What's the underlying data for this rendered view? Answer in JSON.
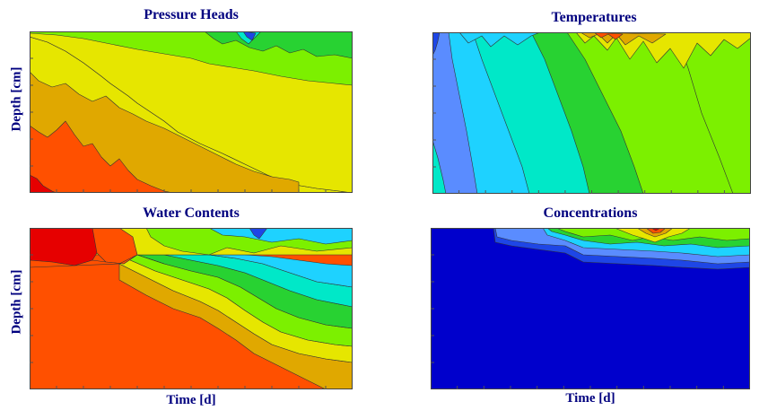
{
  "panels": [
    {
      "title": "Pressure Heads",
      "ylabel": "Depth [cm]",
      "xlabel": ""
    },
    {
      "title": "Temperatures",
      "ylabel": "",
      "xlabel": ""
    },
    {
      "title": "Water Contents",
      "ylabel": "Depth [cm]",
      "xlabel": "Time [d]"
    },
    {
      "title": "Concentrations",
      "ylabel": "",
      "xlabel": "Time [d]"
    }
  ],
  "colors": {
    "title_text": "#00007f",
    "scale": [
      "#0000cc",
      "#1e46e6",
      "#5a8cff",
      "#1ed2ff",
      "#00e8c8",
      "#00e070",
      "#28d232",
      "#7cf000",
      "#e6e600",
      "#e0a800",
      "#ff5000",
      "#e60000"
    ]
  },
  "chart_data": [
    {
      "type": "heatmap",
      "title": "Pressure Heads",
      "xlabel": "",
      "ylabel": "Depth [cm]",
      "grid": false
    },
    {
      "type": "heatmap",
      "title": "Temperatures",
      "xlabel": "",
      "ylabel": "",
      "grid": false
    },
    {
      "type": "heatmap",
      "title": "Water Contents",
      "xlabel": "Time [d]",
      "ylabel": "Depth [cm]",
      "grid": false
    },
    {
      "type": "heatmap",
      "title": "Concentrations",
      "xlabel": "Time [d]",
      "ylabel": "",
      "grid": false
    }
  ]
}
